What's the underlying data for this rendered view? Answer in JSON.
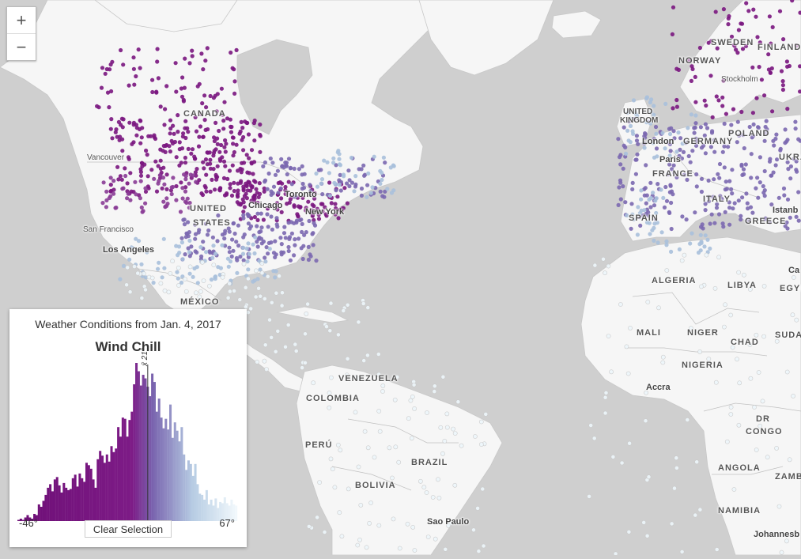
{
  "map": {
    "countries": [
      {
        "name": "CANADA",
        "cls": ""
      },
      {
        "name": "UNITED",
        "cls": ""
      },
      {
        "name": "STATES",
        "cls": ""
      },
      {
        "name": "MÉXICO",
        "cls": ""
      },
      {
        "name": "VENEZUELA",
        "cls": ""
      },
      {
        "name": "COLOMBIA",
        "cls": ""
      },
      {
        "name": "PERÚ",
        "cls": ""
      },
      {
        "name": "BRAZIL",
        "cls": ""
      },
      {
        "name": "BOLIVIA",
        "cls": ""
      },
      {
        "name": "SWEDEN",
        "cls": ""
      },
      {
        "name": "NORWAY",
        "cls": ""
      },
      {
        "name": "FINLAND",
        "cls": ""
      },
      {
        "name": "UNITED",
        "cls": ""
      },
      {
        "name": "KINGDOM",
        "cls": ""
      },
      {
        "name": "GERMANY",
        "cls": ""
      },
      {
        "name": "POLAND",
        "cls": ""
      },
      {
        "name": "FRANCE",
        "cls": ""
      },
      {
        "name": "UKRA",
        "cls": ""
      },
      {
        "name": "SPAIN",
        "cls": ""
      },
      {
        "name": "ITALY",
        "cls": ""
      },
      {
        "name": "GREECE",
        "cls": ""
      },
      {
        "name": "ALGERIA",
        "cls": ""
      },
      {
        "name": "LIBYA",
        "cls": ""
      },
      {
        "name": "EGYP",
        "cls": ""
      },
      {
        "name": "MALI",
        "cls": ""
      },
      {
        "name": "NIGER",
        "cls": ""
      },
      {
        "name": "CHAD",
        "cls": ""
      },
      {
        "name": "SUDA",
        "cls": ""
      },
      {
        "name": "NIGERIA",
        "cls": ""
      },
      {
        "name": "DR",
        "cls": ""
      },
      {
        "name": "CONGO",
        "cls": ""
      },
      {
        "name": "ANGOLA",
        "cls": ""
      },
      {
        "name": "ZAMBI",
        "cls": ""
      },
      {
        "name": "NAMIBIA",
        "cls": ""
      }
    ],
    "cities": [
      "Vancouver",
      "Toronto",
      "Chicago",
      "New York",
      "San Francisco",
      "Los Angeles",
      "London",
      "Paris",
      "Stockholm",
      "Istanb",
      "Accra",
      "Sao Paulo",
      "Johannesb",
      "Ca"
    ]
  },
  "zoom": {
    "in_label": "+",
    "out_label": "−"
  },
  "panel": {
    "subtitle": "Weather Conditions from Jan. 4, 2017",
    "title": "Wind Chill",
    "min_label": "-46°",
    "max_label": "67°",
    "avg_label": "x̄ 21°",
    "clear_button": "Clear Selection"
  },
  "chart_data": {
    "type": "bar",
    "title": "Wind Chill",
    "x_range": [
      -46,
      67
    ],
    "mean": 21,
    "values": [
      1,
      2,
      1,
      3,
      5,
      3,
      2,
      6,
      5,
      14,
      12,
      17,
      22,
      28,
      31,
      25,
      35,
      37,
      30,
      24,
      32,
      28,
      26,
      27,
      36,
      39,
      29,
      40,
      36,
      33,
      49,
      47,
      44,
      35,
      28,
      52,
      59,
      55,
      49,
      56,
      50,
      63,
      58,
      61,
      79,
      71,
      87,
      86,
      71,
      85,
      92,
      115,
      133,
      126,
      114,
      123,
      120,
      113,
      105,
      124,
      117,
      92,
      103,
      87,
      78,
      86,
      77,
      98,
      70,
      83,
      76,
      67,
      79,
      56,
      43,
      51,
      48,
      38,
      48,
      31,
      23,
      22,
      18,
      26,
      14,
      18,
      13,
      19,
      11,
      16,
      15,
      20,
      15,
      13,
      18,
      14,
      13
    ]
  },
  "colors": {
    "cold": "#7a1680",
    "mid": "#7b68b0",
    "cool": "#a9c0dc",
    "warm": "#eef6fb",
    "land": "#f6f6f6",
    "water": "#cfcfcf"
  }
}
